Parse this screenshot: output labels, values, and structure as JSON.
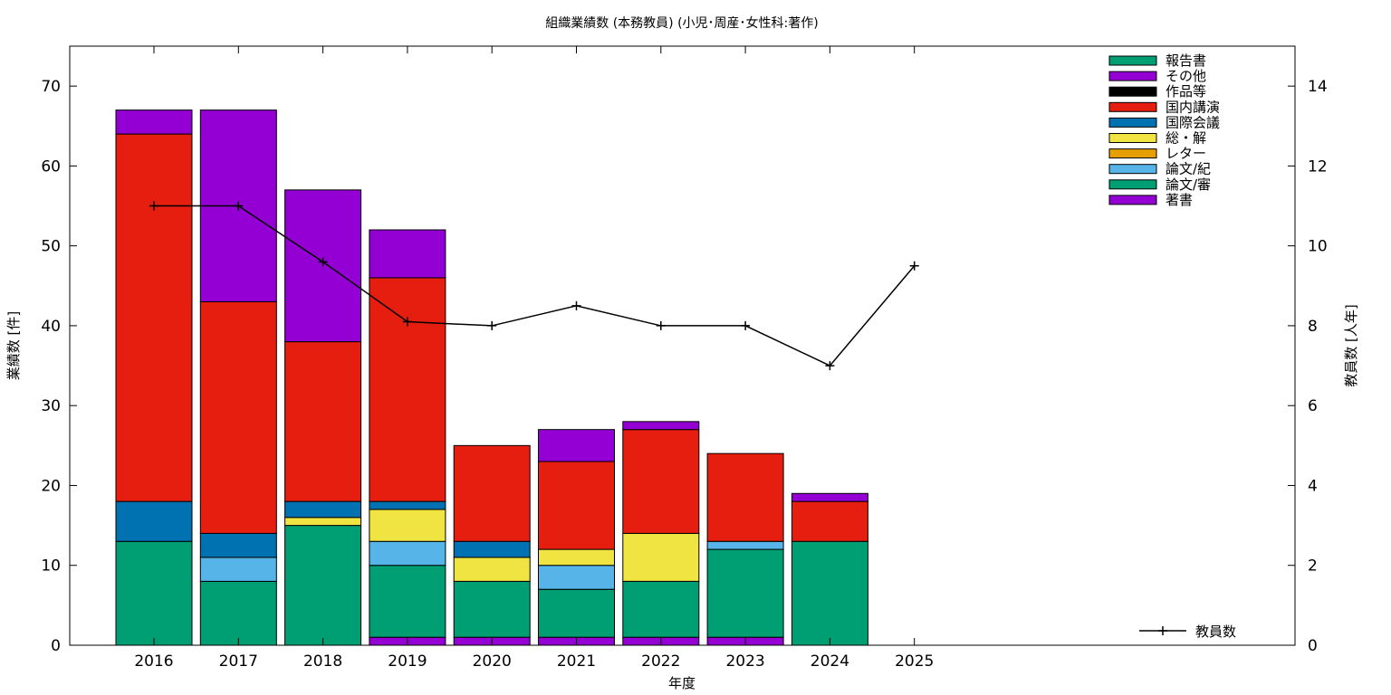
{
  "chart_data": {
    "type": "bar",
    "title": "組織業績数 (本務教員) (小児･周産･女性科:著作)",
    "xlabel": "年度",
    "ylabel": "業績数 [件]",
    "y2label": "教員数 [人年]",
    "categories": [
      "2016",
      "2017",
      "2018",
      "2019",
      "2020",
      "2021",
      "2022",
      "2023",
      "2024",
      "2025"
    ],
    "ylim": [
      0,
      75
    ],
    "y2lim": [
      0,
      15
    ],
    "yticks": [
      0,
      10,
      20,
      30,
      40,
      50,
      60,
      70
    ],
    "y2ticks": [
      0,
      2,
      4,
      6,
      8,
      10,
      12,
      14
    ],
    "stacked": true,
    "grid": false,
    "legend_position": "top-right",
    "series": [
      {
        "name": "著書",
        "color": "#9400d3",
        "values": [
          0,
          0,
          0,
          1,
          1,
          1,
          1,
          1,
          0,
          0
        ]
      },
      {
        "name": "論文/審",
        "color": "#009e73",
        "values": [
          13,
          8,
          15,
          9,
          7,
          6,
          7,
          11,
          13,
          0
        ]
      },
      {
        "name": "論文/紀",
        "color": "#56b4e9",
        "values": [
          0,
          3,
          0,
          3,
          0,
          3,
          0,
          1,
          0,
          0
        ]
      },
      {
        "name": "レター",
        "color": "#e69f00",
        "values": [
          0,
          0,
          0,
          0,
          0,
          0,
          0,
          0,
          0,
          0
        ]
      },
      {
        "name": "総・解",
        "color": "#f0e442",
        "values": [
          0,
          0,
          1,
          4,
          3,
          2,
          6,
          0,
          0,
          0
        ]
      },
      {
        "name": "国際会議",
        "color": "#0072b2",
        "values": [
          5,
          3,
          2,
          1,
          2,
          0,
          0,
          0,
          0,
          0
        ]
      },
      {
        "name": "国内講演",
        "color": "#e51e10",
        "values": [
          46,
          29,
          20,
          28,
          12,
          11,
          13,
          11,
          5,
          0
        ]
      },
      {
        "name": "作品等",
        "color": "#000000",
        "values": [
          0,
          0,
          0,
          0,
          0,
          0,
          0,
          0,
          0,
          0
        ]
      },
      {
        "name": "その他",
        "color": "#9400d3",
        "values": [
          3,
          24,
          19,
          6,
          0,
          4,
          1,
          0,
          1,
          0
        ]
      },
      {
        "name": "報告書",
        "color": "#009e73",
        "values": [
          0,
          0,
          0,
          0,
          0,
          0,
          0,
          0,
          0,
          0
        ]
      }
    ],
    "line_series": {
      "name": "教員数",
      "axis": "y2",
      "color": "#000000",
      "values": [
        11,
        11,
        9.6,
        8.1,
        8,
        8.5,
        8,
        8,
        7,
        9.5
      ]
    }
  }
}
